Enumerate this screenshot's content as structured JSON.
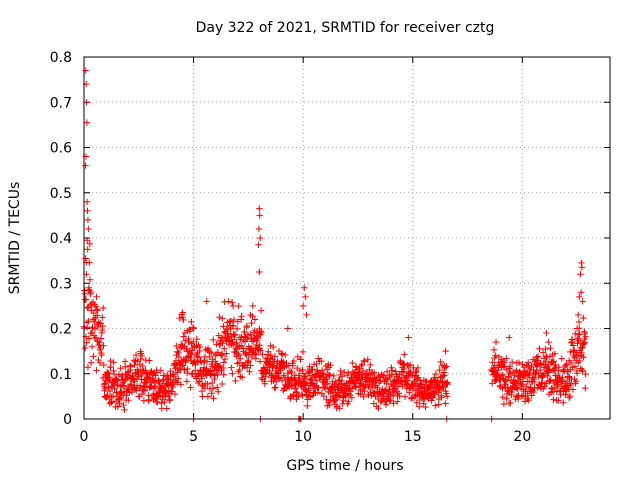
{
  "chart_data": {
    "type": "scatter",
    "title": "Day 322 of 2021, SRMTID for receiver cztg",
    "xlabel": "GPS time / hours",
    "ylabel": "SRMTID / TECUs",
    "xlim": [
      0,
      24
    ],
    "ylim": [
      0,
      0.8
    ],
    "x_ticks": [
      0,
      5,
      10,
      15,
      20
    ],
    "x_tick_labels": [
      "0",
      "5",
      "10",
      "15",
      "20"
    ],
    "y_ticks": [
      0,
      0.1,
      0.2,
      0.3,
      0.4,
      0.5,
      0.6,
      0.7,
      0.8
    ],
    "y_tick_labels": [
      "0",
      "0.1",
      "0.2",
      "0.3",
      "0.4",
      "0.5",
      "0.6",
      "0.7",
      "0.8"
    ],
    "grid": true,
    "marker": "plus",
    "color": "#ff0000",
    "segments": [
      {
        "start": 0.0,
        "end": 0.3,
        "base": 0.26,
        "spread": 0.12
      },
      {
        "start": 0.3,
        "end": 0.9,
        "base": 0.17,
        "spread": 0.07
      },
      {
        "start": 0.9,
        "end": 4.2,
        "base": 0.08,
        "spread": 0.04
      },
      {
        "start": 4.2,
        "end": 6.3,
        "base": 0.13,
        "spread": 0.06
      },
      {
        "start": 6.3,
        "end": 7.3,
        "base": 0.16,
        "spread": 0.06
      },
      {
        "start": 7.3,
        "end": 8.1,
        "base": 0.18,
        "spread": 0.05
      },
      {
        "start": 8.1,
        "end": 10.0,
        "base": 0.1,
        "spread": 0.04
      },
      {
        "start": 10.0,
        "end": 16.6,
        "base": 0.075,
        "spread": 0.035
      },
      {
        "start": 18.6,
        "end": 21.0,
        "base": 0.09,
        "spread": 0.04
      },
      {
        "start": 21.0,
        "end": 22.2,
        "base": 0.1,
        "spread": 0.045
      },
      {
        "start": 22.2,
        "end": 22.9,
        "base": 0.14,
        "spread": 0.06
      }
    ],
    "spikes": [
      {
        "x": 0.08,
        "y": 0.77
      },
      {
        "x": 0.1,
        "y": 0.74
      },
      {
        "x": 0.12,
        "y": 0.7
      },
      {
        "x": 0.13,
        "y": 0.655
      },
      {
        "x": 0.09,
        "y": 0.58
      },
      {
        "x": 0.07,
        "y": 0.56
      },
      {
        "x": 0.14,
        "y": 0.48
      },
      {
        "x": 0.16,
        "y": 0.46
      },
      {
        "x": 0.18,
        "y": 0.44
      },
      {
        "x": 0.2,
        "y": 0.42
      },
      {
        "x": 0.15,
        "y": 0.395
      },
      {
        "x": 0.11,
        "y": 0.32
      },
      {
        "x": 0.22,
        "y": 0.29
      },
      {
        "x": 0.3,
        "y": 0.28
      },
      {
        "x": 0.62,
        "y": 0.24
      },
      {
        "x": 8.0,
        "y": 0.465
      },
      {
        "x": 8.02,
        "y": 0.45
      },
      {
        "x": 7.98,
        "y": 0.42
      },
      {
        "x": 8.04,
        "y": 0.4
      },
      {
        "x": 7.96,
        "y": 0.385
      },
      {
        "x": 8.0,
        "y": 0.325
      },
      {
        "x": 7.7,
        "y": 0.25
      },
      {
        "x": 7.6,
        "y": 0.23
      },
      {
        "x": 7.8,
        "y": 0.22
      },
      {
        "x": 6.6,
        "y": 0.26
      },
      {
        "x": 6.8,
        "y": 0.25
      },
      {
        "x": 5.6,
        "y": 0.26
      },
      {
        "x": 4.5,
        "y": 0.225
      },
      {
        "x": 4.9,
        "y": 0.215
      },
      {
        "x": 9.3,
        "y": 0.2
      },
      {
        "x": 10.05,
        "y": 0.29
      },
      {
        "x": 10.1,
        "y": 0.27
      },
      {
        "x": 10.0,
        "y": 0.25
      },
      {
        "x": 10.15,
        "y": 0.23
      },
      {
        "x": 22.7,
        "y": 0.345
      },
      {
        "x": 22.72,
        "y": 0.335
      },
      {
        "x": 22.65,
        "y": 0.32
      },
      {
        "x": 22.68,
        "y": 0.28
      },
      {
        "x": 22.6,
        "y": 0.27
      },
      {
        "x": 22.75,
        "y": 0.26
      },
      {
        "x": 22.55,
        "y": 0.23
      },
      {
        "x": 22.5,
        "y": 0.2
      },
      {
        "x": 21.1,
        "y": 0.19
      },
      {
        "x": 21.2,
        "y": 0.17
      },
      {
        "x": 19.4,
        "y": 0.18
      },
      {
        "x": 14.8,
        "y": 0.18
      },
      {
        "x": 16.5,
        "y": 0.15
      },
      {
        "x": 18.8,
        "y": 0.17
      }
    ],
    "zero_points": [
      5.0,
      8.05,
      9.8,
      9.85,
      9.9,
      16.55,
      18.6
    ]
  }
}
